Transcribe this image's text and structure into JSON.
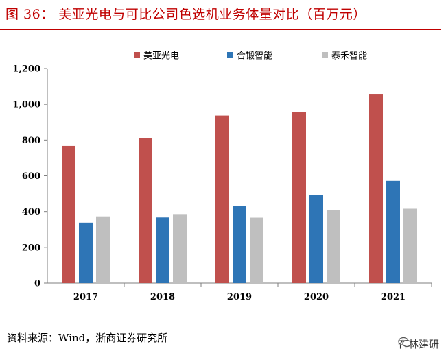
{
  "title": "图 36： 美亚光电与可比公司色选机业务体量对比（百万元）",
  "source": "资料来源：Wind，浙商证券研究所",
  "watermark": "杏林建研",
  "chart_data": {
    "type": "bar",
    "title": "美亚光电与可比公司色选机业务体量对比（百万元）",
    "xlabel": "",
    "ylabel": "",
    "categories": [
      "2017",
      "2018",
      "2019",
      "2020",
      "2021"
    ],
    "ylim": [
      0,
      1200
    ],
    "yticks": [
      0,
      200,
      400,
      600,
      800,
      1000,
      1200
    ],
    "ytick_labels": [
      "0",
      "200",
      "400",
      "600",
      "800",
      "1,000",
      "1,200"
    ],
    "legend_position": "top",
    "grid": false,
    "series": [
      {
        "name": "美亚光电",
        "color": "#c0504d",
        "values": [
          767,
          810,
          937,
          957,
          1058
        ]
      },
      {
        "name": "合锻智能",
        "color": "#2e75b6",
        "values": [
          338,
          367,
          432,
          493,
          572
        ]
      },
      {
        "name": "泰禾智能",
        "color": "#bfbfbf",
        "values": [
          373,
          386,
          366,
          410,
          416
        ]
      }
    ]
  }
}
